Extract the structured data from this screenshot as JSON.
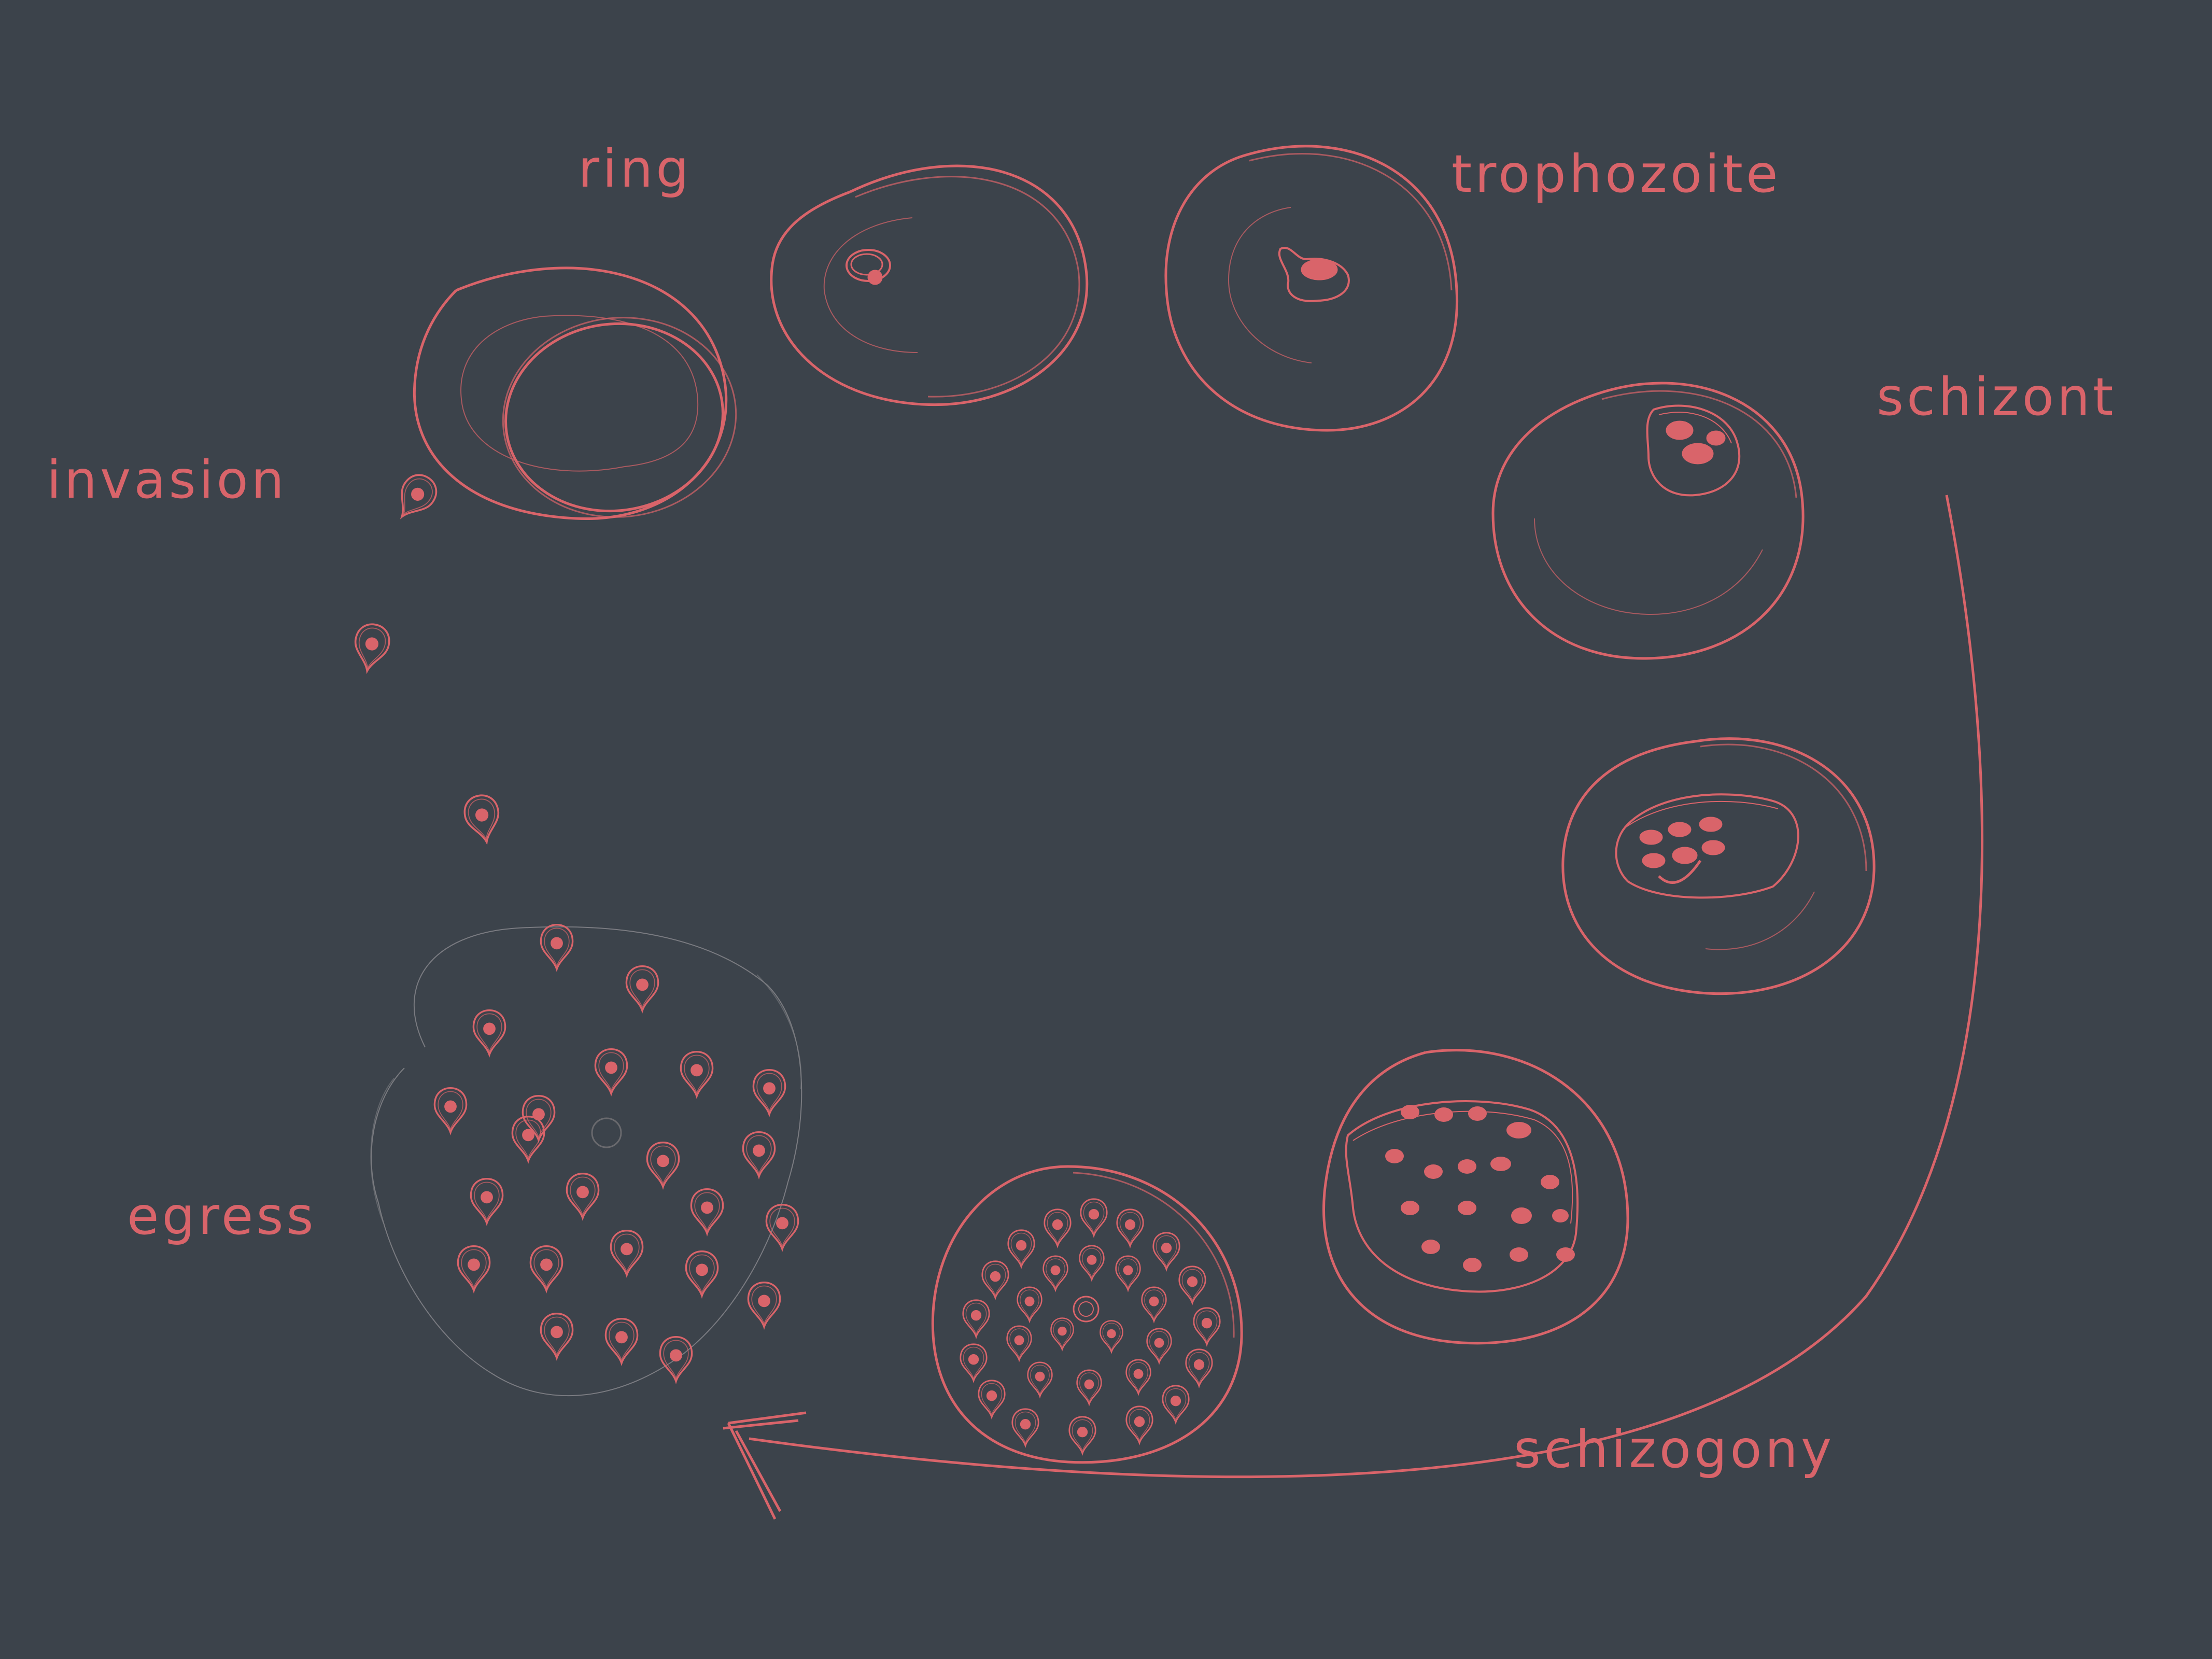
{
  "diagram": {
    "background_color": "#3c434b",
    "accent_color": "#d9646a",
    "labels": {
      "ring": "ring",
      "trophozoite": "trophozoite",
      "schizont": "schizont",
      "invasion": "invasion",
      "egress": "egress",
      "schizogony": "schizogony"
    },
    "stages": [
      "invasion-cell",
      "ring-cell",
      "trophozoite-cell",
      "schizont-cell",
      "early-schizogony-cell",
      "late-schizogony-cell",
      "segmenter-cell",
      "egress-cluster"
    ]
  }
}
